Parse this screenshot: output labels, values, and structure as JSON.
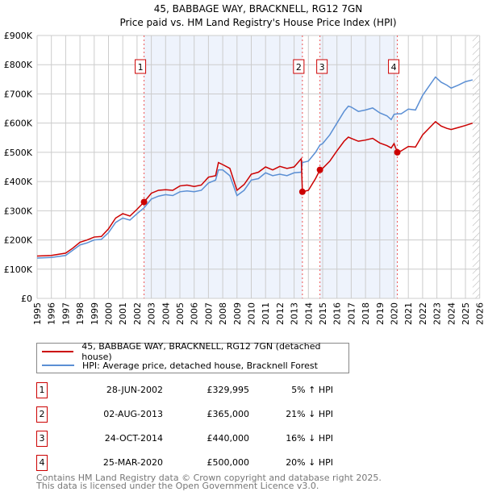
{
  "chart_data": {
    "type": "line",
    "title": "45, BABBAGE WAY, BRACKNELL, RG12 7GN",
    "subtitle": "Price paid vs. HM Land Registry's House Price Index (HPI)",
    "xlim": [
      1995,
      2026
    ],
    "ylim": [
      0,
      900000
    ],
    "y_ticks": [
      "£0",
      "£100K",
      "£200K",
      "£300K",
      "£400K",
      "£500K",
      "£600K",
      "£700K",
      "£800K",
      "£900K"
    ],
    "x_ticks": [
      "1995",
      "1996",
      "1997",
      "1998",
      "1999",
      "2000",
      "2001",
      "2002",
      "2003",
      "2004",
      "2005",
      "2006",
      "2007",
      "2008",
      "2009",
      "2010",
      "2011",
      "2012",
      "2013",
      "2014",
      "2015",
      "2016",
      "2017",
      "2018",
      "2019",
      "2020",
      "2021",
      "2022",
      "2023",
      "2024",
      "2025",
      "2026"
    ],
    "x": [
      1995,
      1996,
      1997,
      1997.5,
      1998,
      1998.5,
      1999,
      1999.5,
      2000,
      2000.5,
      2001,
      2001.5,
      2002,
      2002.49,
      2003,
      2003.5,
      2004,
      2004.5,
      2005,
      2005.5,
      2006,
      2006.5,
      2007,
      2007.5,
      2007.7,
      2008,
      2008.5,
      2009,
      2009.5,
      2010,
      2010.5,
      2011,
      2011.5,
      2012,
      2012.5,
      2013,
      2013.5,
      2013.58,
      2014,
      2014.5,
      2014.81,
      2015,
      2015.5,
      2016,
      2016.5,
      2016.8,
      2017,
      2017.5,
      2018,
      2018.5,
      2019,
      2019.5,
      2019.8,
      2020,
      2020.23,
      2020.5,
      2021,
      2021.5,
      2022,
      2022.5,
      2022.9,
      2023.3,
      2023.7,
      2024,
      2024.5,
      2025,
      2025.5
    ],
    "series": [
      {
        "name": "45, BABBAGE WAY, BRACKNELL, RG12 7GN (detached house)",
        "color": "#cc0000",
        "values_k": [
          145,
          147,
          155,
          172,
          192,
          200,
          210,
          212,
          238,
          275,
          290,
          282,
          305,
          330,
          360,
          370,
          372,
          370,
          385,
          388,
          383,
          388,
          415,
          420,
          465,
          458,
          445,
          370,
          390,
          425,
          432,
          450,
          440,
          452,
          445,
          450,
          478,
          365,
          370,
          410,
          440,
          445,
          470,
          505,
          538,
          552,
          548,
          538,
          542,
          548,
          532,
          523,
          515,
          530,
          500,
          505,
          520,
          518,
          560,
          585,
          605,
          590,
          582,
          578,
          585,
          592,
          600
        ]
      },
      {
        "name": "HPI: Average price, detached house, Bracknell Forest",
        "color": "#5b8fd4",
        "values_k": [
          138,
          140,
          147,
          165,
          183,
          190,
          200,
          202,
          225,
          260,
          275,
          268,
          290,
          310,
          340,
          350,
          355,
          352,
          365,
          368,
          365,
          370,
          395,
          405,
          440,
          440,
          420,
          352,
          370,
          405,
          410,
          430,
          420,
          425,
          420,
          430,
          432,
          465,
          470,
          500,
          525,
          530,
          560,
          600,
          640,
          658,
          655,
          640,
          645,
          652,
          635,
          625,
          612,
          630,
          632,
          632,
          648,
          645,
          695,
          730,
          758,
          740,
          730,
          720,
          730,
          742,
          748
        ]
      }
    ],
    "sales": [
      {
        "label": "1",
        "date": "28-JUN-2002",
        "x": 2002.49,
        "price": "£329,995",
        "price_k": 330,
        "hpi": "5% ↑ HPI"
      },
      {
        "label": "2",
        "date": "02-AUG-2013",
        "x": 2013.58,
        "price": "£365,000",
        "price_k": 365,
        "hpi": "21% ↓ HPI"
      },
      {
        "label": "3",
        "date": "24-OCT-2014",
        "x": 2014.81,
        "price": "£440,000",
        "price_k": 440,
        "hpi": "16% ↓ HPI"
      },
      {
        "label": "4",
        "date": "25-MAR-2020",
        "x": 2020.23,
        "price": "£500,000",
        "price_k": 500,
        "hpi": "20% ↓ HPI"
      }
    ],
    "legend_placement": "below",
    "grid": true
  },
  "footer": {
    "line1": "Contains HM Land Registry data © Crown copyright and database right 2025.",
    "line2": "This data is licensed under the Open Government Licence v3.0."
  }
}
